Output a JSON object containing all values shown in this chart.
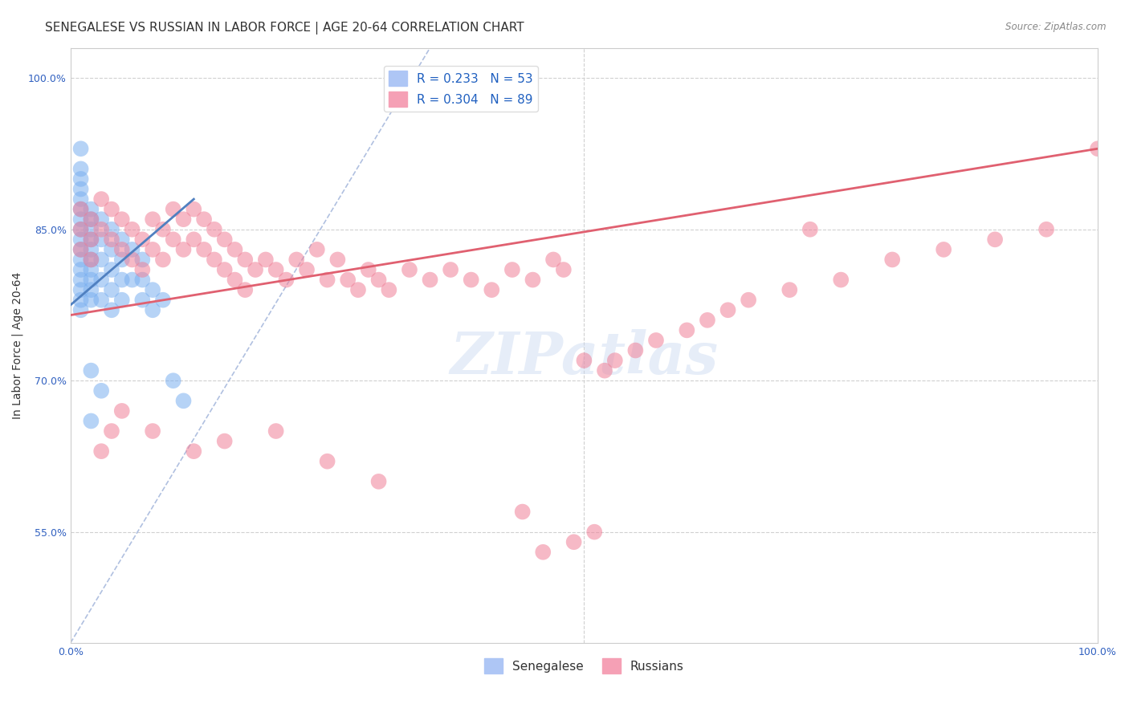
{
  "title": "SENEGALESE VS RUSSIAN IN LABOR FORCE | AGE 20-64 CORRELATION CHART",
  "source": "Source: ZipAtlas.com",
  "ylabel": "In Labor Force | Age 20-64",
  "xlabel": "",
  "xlim": [
    0.0,
    1.0
  ],
  "ylim": [
    0.44,
    1.03
  ],
  "ytick_positions": [
    0.55,
    0.7,
    0.85,
    1.0
  ],
  "ytick_labels": [
    "55.0%",
    "70.0%",
    "85.0%",
    "100.0%"
  ],
  "xtick_positions": [
    0.0,
    0.2,
    0.4,
    0.6,
    0.8,
    1.0
  ],
  "xtick_labels": [
    "0.0%",
    "",
    "",
    "",
    "",
    "100.0%"
  ],
  "legend_entries": [
    {
      "label": "R = 0.233   N = 53",
      "color": "#aec6f5"
    },
    {
      "label": "R = 0.304   N = 89",
      "color": "#f5a0b5"
    }
  ],
  "blue_scatter_x": [
    0.01,
    0.01,
    0.01,
    0.01,
    0.01,
    0.01,
    0.01,
    0.01,
    0.01,
    0.01,
    0.01,
    0.01,
    0.01,
    0.01,
    0.01,
    0.01,
    0.02,
    0.02,
    0.02,
    0.02,
    0.02,
    0.02,
    0.02,
    0.02,
    0.02,
    0.02,
    0.03,
    0.03,
    0.03,
    0.03,
    0.03,
    0.04,
    0.04,
    0.04,
    0.04,
    0.04,
    0.05,
    0.05,
    0.05,
    0.05,
    0.06,
    0.06,
    0.07,
    0.07,
    0.07,
    0.08,
    0.08,
    0.09,
    0.1,
    0.11,
    0.02,
    0.02,
    0.03
  ],
  "blue_scatter_y": [
    0.93,
    0.91,
    0.9,
    0.89,
    0.88,
    0.87,
    0.86,
    0.85,
    0.84,
    0.83,
    0.82,
    0.81,
    0.8,
    0.79,
    0.78,
    0.77,
    0.87,
    0.86,
    0.85,
    0.84,
    0.83,
    0.82,
    0.81,
    0.8,
    0.79,
    0.78,
    0.86,
    0.84,
    0.82,
    0.8,
    0.78,
    0.85,
    0.83,
    0.81,
    0.79,
    0.77,
    0.84,
    0.82,
    0.8,
    0.78,
    0.83,
    0.8,
    0.82,
    0.8,
    0.78,
    0.79,
    0.77,
    0.78,
    0.7,
    0.68,
    0.71,
    0.66,
    0.69
  ],
  "pink_scatter_x": [
    0.01,
    0.01,
    0.01,
    0.02,
    0.02,
    0.02,
    0.03,
    0.03,
    0.04,
    0.04,
    0.05,
    0.05,
    0.06,
    0.06,
    0.07,
    0.07,
    0.08,
    0.08,
    0.09,
    0.09,
    0.1,
    0.1,
    0.11,
    0.11,
    0.12,
    0.12,
    0.13,
    0.13,
    0.14,
    0.14,
    0.15,
    0.15,
    0.16,
    0.16,
    0.17,
    0.17,
    0.18,
    0.19,
    0.2,
    0.21,
    0.22,
    0.23,
    0.24,
    0.25,
    0.26,
    0.27,
    0.28,
    0.29,
    0.3,
    0.31,
    0.33,
    0.35,
    0.37,
    0.39,
    0.41,
    0.43,
    0.45,
    0.47,
    0.48,
    0.5,
    0.52,
    0.53,
    0.55,
    0.57,
    0.6,
    0.62,
    0.64,
    0.66,
    0.7,
    0.72,
    0.75,
    0.8,
    0.85,
    0.9,
    0.95,
    1.0,
    0.44,
    0.46,
    0.49,
    0.51,
    0.03,
    0.04,
    0.05,
    0.08,
    0.12,
    0.15,
    0.2,
    0.25,
    0.3
  ],
  "pink_scatter_y": [
    0.87,
    0.85,
    0.83,
    0.86,
    0.84,
    0.82,
    0.88,
    0.85,
    0.87,
    0.84,
    0.86,
    0.83,
    0.85,
    0.82,
    0.84,
    0.81,
    0.86,
    0.83,
    0.85,
    0.82,
    0.87,
    0.84,
    0.86,
    0.83,
    0.87,
    0.84,
    0.86,
    0.83,
    0.85,
    0.82,
    0.84,
    0.81,
    0.83,
    0.8,
    0.82,
    0.79,
    0.81,
    0.82,
    0.81,
    0.8,
    0.82,
    0.81,
    0.83,
    0.8,
    0.82,
    0.8,
    0.79,
    0.81,
    0.8,
    0.79,
    0.81,
    0.8,
    0.81,
    0.8,
    0.79,
    0.81,
    0.8,
    0.82,
    0.81,
    0.72,
    0.71,
    0.72,
    0.73,
    0.74,
    0.75,
    0.76,
    0.77,
    0.78,
    0.79,
    0.85,
    0.8,
    0.82,
    0.83,
    0.84,
    0.85,
    0.93,
    0.57,
    0.53,
    0.54,
    0.55,
    0.63,
    0.65,
    0.67,
    0.65,
    0.63,
    0.64,
    0.65,
    0.62,
    0.6
  ],
  "blue_line_x": [
    0.0,
    0.12
  ],
  "blue_line_y": [
    0.775,
    0.88
  ],
  "pink_line_x": [
    0.0,
    1.0
  ],
  "pink_line_y": [
    0.765,
    0.93
  ],
  "diag_line_x": [
    0.0,
    0.35
  ],
  "diag_line_y": [
    0.44,
    1.03
  ],
  "grid_color": "#d0d0d0",
  "blue_color": "#7aaff0",
  "pink_color": "#f08098",
  "blue_line_color": "#5080c0",
  "pink_line_color": "#e06070",
  "diag_line_color": "#b0c0e0",
  "watermark": "ZIPatlas",
  "title_fontsize": 11,
  "label_fontsize": 10,
  "tick_fontsize": 9
}
